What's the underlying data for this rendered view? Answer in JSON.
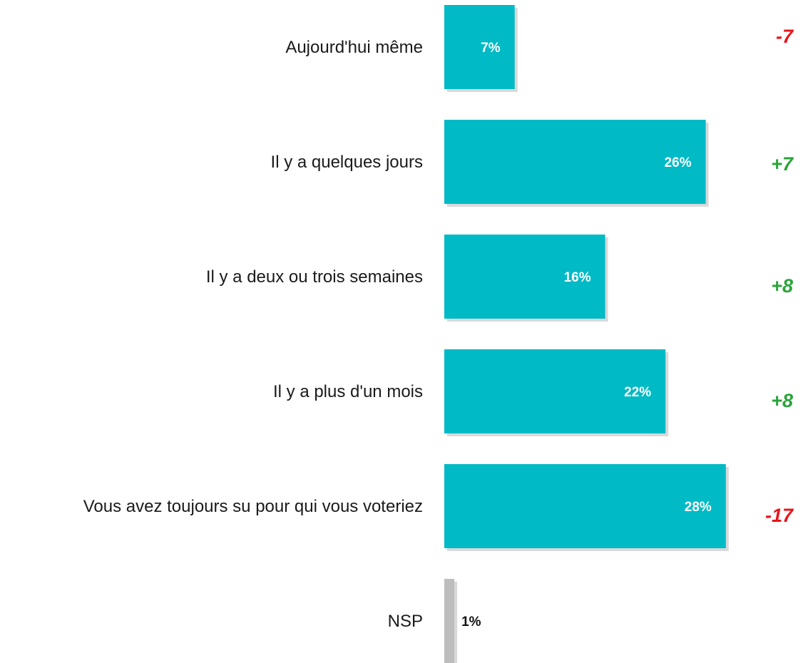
{
  "chart_data": {
    "type": "bar",
    "orientation": "horizontal",
    "categories": [
      "Aujourd'hui même",
      "Il y a quelques jours",
      "Il y a deux ou trois semaines",
      "Il y a plus d'un mois",
      "Vous avez toujours su pour qui vous voteriez",
      "NSP"
    ],
    "values": [
      7,
      26,
      16,
      22,
      28,
      1
    ],
    "value_labels": [
      "7%",
      "26%",
      "16%",
      "22%",
      "28%",
      "1%"
    ],
    "changes": [
      "-7",
      "+7",
      "+8",
      "+8",
      "-17",
      ""
    ],
    "title": "",
    "xlabel": "",
    "ylabel": "",
    "grid": false,
    "legend": "none",
    "colors": {
      "bar": "#00BAC6",
      "bar_nsp": "#BDBDBD",
      "shadow": "#B9B9B9",
      "value_text_on_bar": "#ffffff",
      "value_text_nsp": "#111111",
      "change_positive": "#2AA43A",
      "change_negative": "#E8141B"
    }
  }
}
